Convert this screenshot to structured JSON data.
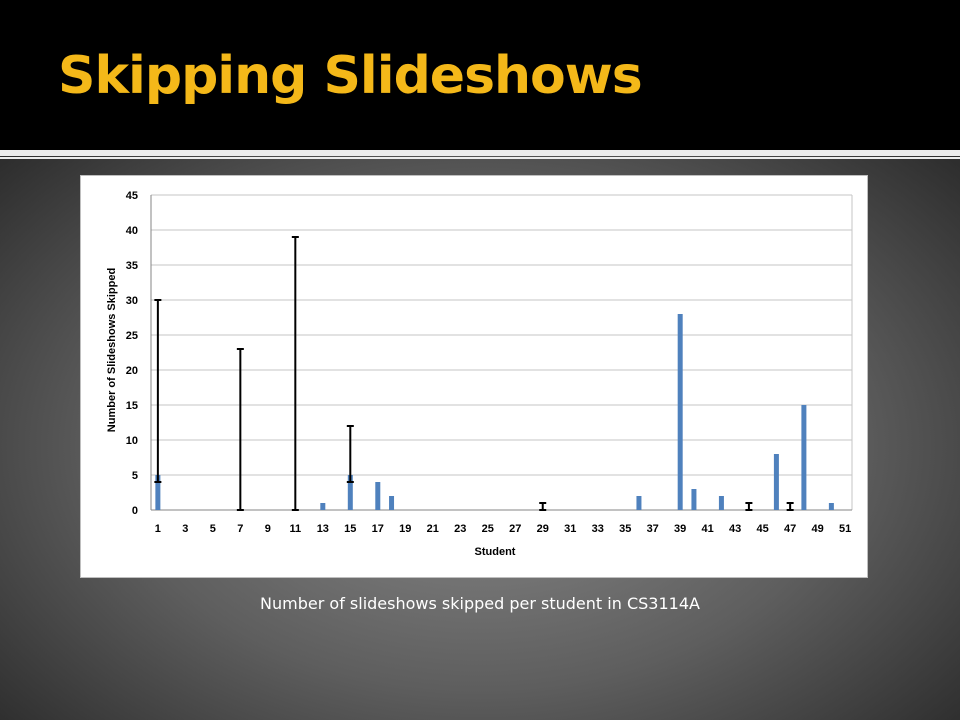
{
  "slide": {
    "title": "Skipping Slideshows",
    "caption": "Number of slideshows skipped per student in CS3114A"
  },
  "colors": {
    "title": "#f4b819",
    "bar": "#4f81bd",
    "error_bar": "#000000",
    "grid": "#c6c6c6"
  },
  "chart_data": {
    "type": "bar",
    "xlabel": "Student",
    "ylabel": "Number of Slideshows Skipped",
    "ylim": [
      0,
      45
    ],
    "yticks": [
      0,
      5,
      10,
      15,
      20,
      25,
      30,
      35,
      40,
      45
    ],
    "grid": true,
    "x_range": [
      1,
      51
    ],
    "xticks": [
      1,
      3,
      5,
      7,
      9,
      11,
      13,
      15,
      17,
      19,
      21,
      23,
      25,
      27,
      29,
      31,
      33,
      35,
      37,
      39,
      41,
      43,
      45,
      47,
      49,
      51
    ],
    "bars": [
      {
        "x": 1,
        "y": 5
      },
      {
        "x": 13,
        "y": 1
      },
      {
        "x": 15,
        "y": 5
      },
      {
        "x": 17,
        "y": 4
      },
      {
        "x": 18,
        "y": 2
      },
      {
        "x": 36,
        "y": 2
      },
      {
        "x": 39,
        "y": 28
      },
      {
        "x": 40,
        "y": 3
      },
      {
        "x": 42,
        "y": 2
      },
      {
        "x": 46,
        "y": 8
      },
      {
        "x": 48,
        "y": 15
      },
      {
        "x": 50,
        "y": 1
      }
    ],
    "error_bars": [
      {
        "x": 1,
        "low": 4,
        "high": 30
      },
      {
        "x": 7,
        "low": 0,
        "high": 23
      },
      {
        "x": 11,
        "low": 0,
        "high": 39
      },
      {
        "x": 15,
        "low": 4,
        "high": 12
      },
      {
        "x": 29,
        "low": 0,
        "high": 1
      },
      {
        "x": 44,
        "low": 0,
        "high": 1
      },
      {
        "x": 47,
        "low": 0,
        "high": 1
      }
    ]
  }
}
